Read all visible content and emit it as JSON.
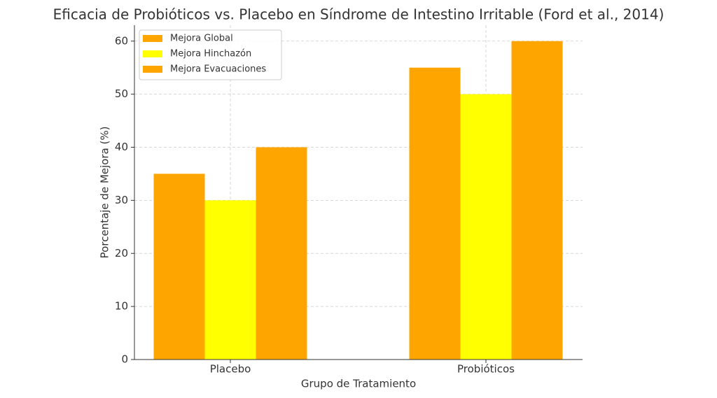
{
  "chart_data": {
    "type": "bar",
    "title": "Eficacia de Probióticos vs. Placebo en Síndrome de Intestino Irritable (Ford et al., 2014)",
    "x_label": "Grupo de Tratamiento",
    "y_label": "Porcentaje de Mejora (%)",
    "categories": [
      "Placebo",
      "Probióticos"
    ],
    "series": [
      {
        "name": "Mejora Global",
        "color": "#ffa500",
        "values": [
          35,
          55
        ]
      },
      {
        "name": "Mejora Hinchazón",
        "color": "#ffff00",
        "values": [
          30,
          50
        ]
      },
      {
        "name": "Mejora Evacuaciones",
        "color": "#ffa500",
        "values": [
          40,
          60
        ]
      }
    ],
    "ylim": [
      0,
      63
    ],
    "yticks": [
      0,
      10,
      20,
      30,
      40,
      50,
      60
    ],
    "grid": true,
    "legend": "upper-left"
  }
}
